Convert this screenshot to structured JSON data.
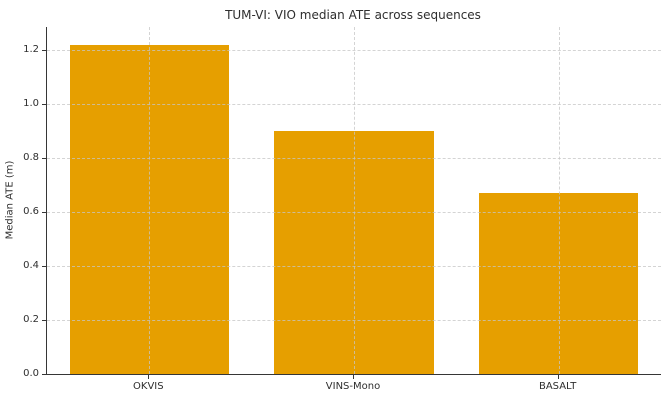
{
  "chart_data": {
    "type": "bar",
    "title": "TUM-VI: VIO median ATE across sequences",
    "categories": [
      "OKVIS",
      "VINS-Mono",
      "BASALT"
    ],
    "values": [
      1.22,
      0.9,
      0.67
    ],
    "xlabel": "",
    "ylabel": "Median ATE (m)",
    "ylim": [
      0,
      1.285
    ],
    "yticks": [
      0.0,
      0.2,
      0.4,
      0.6,
      0.8,
      1.0,
      1.2
    ],
    "ytick_labels": [
      "0.0",
      "0.2",
      "0.4",
      "0.6",
      "0.8",
      "1.0",
      "1.2"
    ],
    "bar_color": "#E69F00",
    "grid": "both-dashed",
    "grid_over_bars": true,
    "legend_position": "none",
    "spine_color": "#363636"
  }
}
